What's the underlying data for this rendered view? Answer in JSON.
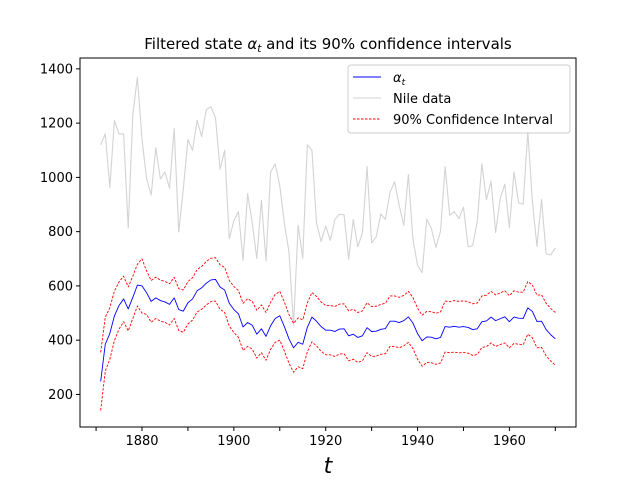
{
  "chart_data": {
    "type": "line",
    "title": "Filtered state α_t and its 90% confidence intervals",
    "xlabel": "t",
    "ylabel": "",
    "xlim": [
      1866.5,
      1974.5
    ],
    "ylim": [
      80,
      1440
    ],
    "xticks": [
      1880,
      1900,
      1920,
      1940,
      1960
    ],
    "yticks": [
      200,
      400,
      600,
      800,
      1000,
      1200,
      1400
    ],
    "grid": false,
    "legend_position": "upper right",
    "x": [
      1871,
      1872,
      1873,
      1874,
      1875,
      1876,
      1877,
      1878,
      1879,
      1880,
      1881,
      1882,
      1883,
      1884,
      1885,
      1886,
      1887,
      1888,
      1889,
      1890,
      1891,
      1892,
      1893,
      1894,
      1895,
      1896,
      1897,
      1898,
      1899,
      1900,
      1901,
      1902,
      1903,
      1904,
      1905,
      1906,
      1907,
      1908,
      1909,
      1910,
      1911,
      1912,
      1913,
      1914,
      1915,
      1916,
      1917,
      1918,
      1919,
      1920,
      1921,
      1922,
      1923,
      1924,
      1925,
      1926,
      1927,
      1928,
      1929,
      1930,
      1931,
      1932,
      1933,
      1934,
      1935,
      1936,
      1937,
      1938,
      1939,
      1940,
      1941,
      1942,
      1943,
      1944,
      1945,
      1946,
      1947,
      1948,
      1949,
      1950,
      1951,
      1952,
      1953,
      1954,
      1955,
      1956,
      1957,
      1958,
      1959,
      1960,
      1961,
      1962,
      1963,
      1964,
      1965,
      1966,
      1967,
      1968,
      1969,
      1970
    ],
    "series": [
      {
        "name": "Nile data",
        "color": "#d3d3d3",
        "style": "solid",
        "values": [
          1120,
          1160,
          963,
          1210,
          1160,
          1160,
          813,
          1230,
          1370,
          1140,
          995,
          935,
          1110,
          994,
          1020,
          960,
          1180,
          799,
          958,
          1140,
          1100,
          1210,
          1150,
          1250,
          1260,
          1220,
          1030,
          1100,
          774,
          840,
          874,
          694,
          940,
          833,
          701,
          916,
          692,
          1020,
          1050,
          969,
          831,
          726,
          456,
          824,
          702,
          1120,
          1100,
          832,
          764,
          821,
          768,
          845,
          864,
          862,
          698,
          845,
          744,
          796,
          1040,
          759,
          781,
          865,
          845,
          944,
          984,
          897,
          822,
          1010,
          771,
          676,
          649,
          846,
          812,
          742,
          801,
          1040,
          860,
          874,
          848,
          890,
          744,
          749,
          838,
          1050,
          918,
          986,
          797,
          923,
          975,
          815,
          1020,
          906,
          901,
          1170,
          912,
          746,
          919,
          718,
          714,
          740
        ]
      },
      {
        "name": "α_t",
        "color": "#0000ff",
        "style": "solid",
        "values": [
          248,
          385,
          425,
          490,
          528,
          552,
          515,
          558,
          603,
          600,
          575,
          543,
          556,
          546,
          541,
          532,
          556,
          513,
          507,
          538,
          552,
          582,
          593,
          610,
          622,
          624,
          596,
          585,
          536,
          513,
          497,
          449,
          465,
          455,
          422,
          442,
          414,
          453,
          480,
          490,
          450,
          405,
          372,
          392,
          385,
          447,
          485,
          470,
          450,
          437,
          437,
          432,
          441,
          442,
          416,
          422,
          410,
          416,
          446,
          432,
          433,
          440,
          443,
          470,
          470,
          465,
          472,
          486,
          463,
          424,
          398,
          412,
          411,
          405,
          410,
          450,
          448,
          451,
          448,
          450,
          447,
          439,
          442,
          468,
          471,
          485,
          472,
          479,
          486,
          468,
          485,
          481,
          480,
          519,
          506,
          469,
          470,
          439,
          420,
          405
        ]
      },
      {
        "name": "90% Confidence Interval",
        "color": "#ff0000",
        "style": "dashed",
        "values": [
          355,
          484,
          520,
          581,
          615,
          636,
          596,
          636,
          680,
          700,
          655,
          620,
          632,
          622,
          616,
          608,
          632,
          590,
          585,
          616,
          630,
          660,
          672,
          690,
          702,
          704,
          678,
          668,
          620,
          598,
          583,
          536,
          553,
          543,
          510,
          530,
          502,
          540,
          568,
          580,
          540,
          495,
          462,
          482,
          475,
          537,
          576,
          561,
          541,
          528,
          528,
          524,
          533,
          534,
          508,
          514,
          502,
          508,
          538,
          524,
          525,
          532,
          536,
          563,
          563,
          558,
          565,
          580,
          557,
          518,
          492,
          506,
          505,
          499,
          504,
          544,
          542,
          546,
          543,
          545,
          542,
          534,
          537,
          563,
          566,
          580,
          567,
          574,
          582,
          564,
          582,
          577,
          577,
          616,
          603,
          566,
          567,
          536,
          517,
          502
        ]
      },
      {
        "name": "",
        "color": "#ff0000",
        "style": "dashed",
        "values": [
          141,
          286,
          330,
          399,
          441,
          468,
          434,
          480,
          526,
          500,
          495,
          466,
          480,
          470,
          466,
          456,
          480,
          436,
          429,
          460,
          474,
          504,
          514,
          530,
          542,
          544,
          514,
          502,
          452,
          428,
          411,
          362,
          377,
          367,
          334,
          354,
          326,
          366,
          392,
          400,
          360,
          315,
          282,
          302,
          295,
          357,
          394,
          379,
          359,
          346,
          346,
          340,
          349,
          350,
          324,
          330,
          318,
          324,
          354,
          340,
          341,
          348,
          350,
          377,
          377,
          372,
          379,
          392,
          369,
          330,
          304,
          318,
          317,
          311,
          316,
          356,
          354,
          356,
          353,
          355,
          352,
          344,
          347,
          373,
          376,
          390,
          377,
          384,
          390,
          372,
          388,
          385,
          383,
          422,
          409,
          372,
          373,
          342,
          323,
          308
        ]
      }
    ],
    "legend": [
      {
        "label": "α_t",
        "color": "#0000ff",
        "style": "solid"
      },
      {
        "label": "Nile data",
        "color": "#d3d3d3",
        "style": "solid"
      },
      {
        "label": "90% Confidence Interval",
        "color": "#ff0000",
        "style": "dashed"
      }
    ]
  }
}
